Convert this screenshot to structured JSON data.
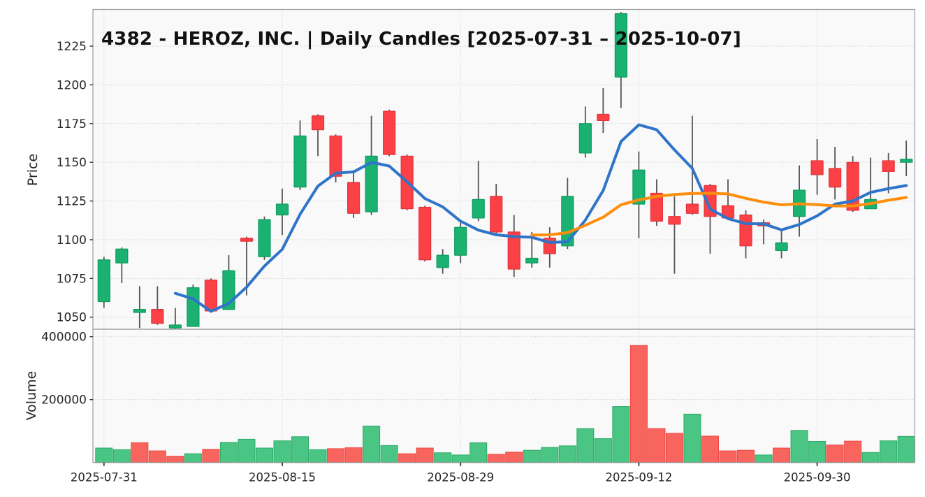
{
  "title": "4382 - HEROZ, INC. | Daily Candles [2025-07-31 – 2025-10-07]",
  "price_axis": {
    "label": "Price",
    "ticks": [
      1050,
      1075,
      1100,
      1125,
      1150,
      1175,
      1200,
      1225
    ]
  },
  "volume_axis": {
    "label": "Volume",
    "ticks": [
      200000,
      400000
    ]
  },
  "x_axis": {
    "tick_labels": [
      "2025-07-31",
      "2025-08-15",
      "2025-08-29",
      "2025-09-12",
      "2025-09-30"
    ],
    "tick_indices": [
      0,
      10,
      20,
      30,
      40
    ]
  },
  "colors": {
    "up": "#1bb271",
    "up_border": "#0f9a5e",
    "down": "#fb4146",
    "down_border": "#e2343c",
    "vol_up": "#4ac584",
    "vol_up_border": "#2aa968",
    "vol_down": "#f8655f",
    "vol_down_border": "#ef4440",
    "ma5": "#2e74c9",
    "ma25": "#fd8e0d",
    "wick": "#555555",
    "panel_bg": "#f9f9f9",
    "grid": "#cdcdcd",
    "spine": "#9a9a9a",
    "text": "#262626"
  },
  "chart_data": {
    "type": "candlestick",
    "title": "4382 - HEROZ, INC. | Daily Candles [2025-07-31 – 2025-10-07]",
    "ylabel": "Price",
    "ylabel2": "Volume",
    "price_ylim": [
      1042,
      1249
    ],
    "volume_ylim": [
      0,
      423700
    ],
    "grid": "dotted",
    "dates": [
      "2025-07-31",
      "2025-08-01",
      "2025-08-04",
      "2025-08-05",
      "2025-08-06",
      "2025-08-07",
      "2025-08-08",
      "2025-08-12",
      "2025-08-13",
      "2025-08-14",
      "2025-08-15",
      "2025-08-18",
      "2025-08-19",
      "2025-08-20",
      "2025-08-21",
      "2025-08-22",
      "2025-08-25",
      "2025-08-26",
      "2025-08-27",
      "2025-08-28",
      "2025-08-29",
      "2025-09-01",
      "2025-09-02",
      "2025-09-03",
      "2025-09-04",
      "2025-09-05",
      "2025-09-08",
      "2025-09-09",
      "2025-09-10",
      "2025-09-11",
      "2025-09-12",
      "2025-09-16",
      "2025-09-17",
      "2025-09-18",
      "2025-09-19",
      "2025-09-22",
      "2025-09-24",
      "2025-09-25",
      "2025-09-26",
      "2025-09-29",
      "2025-09-30",
      "2025-10-01",
      "2025-10-02",
      "2025-10-03",
      "2025-10-06",
      "2025-10-07"
    ],
    "open": [
      1060,
      1085,
      1053,
      1055,
      1043,
      1044,
      1074,
      1055,
      1101,
      1089,
      1116,
      1134,
      1180,
      1167,
      1137,
      1118,
      1183,
      1154,
      1121,
      1082,
      1090,
      1114,
      1128,
      1105,
      1085,
      1101,
      1096,
      1156,
      1181,
      1205,
      1123,
      1130,
      1115,
      1123,
      1135,
      1122,
      1116,
      1111,
      1093,
      1115,
      1151,
      1146,
      1150,
      1120,
      1151,
      1150
    ],
    "high": [
      1089,
      1095,
      1070,
      1070,
      1056,
      1071,
      1075,
      1090,
      1102,
      1115,
      1133,
      1177,
      1181,
      1168,
      1145,
      1180,
      1184,
      1155,
      1122,
      1094,
      1111,
      1151,
      1136,
      1116,
      1105,
      1108,
      1140,
      1186,
      1198,
      1247,
      1157,
      1139,
      1128,
      1180,
      1136,
      1139,
      1119,
      1113,
      1107,
      1148,
      1165,
      1160,
      1154,
      1153,
      1156,
      1164
    ],
    "low": [
      1056,
      1072,
      1043,
      1045,
      1042,
      1044,
      1053,
      1055,
      1064,
      1087,
      1103,
      1132,
      1154,
      1137,
      1114,
      1116,
      1154,
      1119,
      1086,
      1078,
      1085,
      1112,
      1104,
      1076,
      1082,
      1082,
      1094,
      1153,
      1169,
      1185,
      1101,
      1109,
      1078,
      1116,
      1091,
      1113,
      1088,
      1097,
      1088,
      1102,
      1129,
      1126,
      1118,
      1120,
      1130,
      1141
    ],
    "close": [
      1087,
      1094,
      1055,
      1046,
      1045,
      1069,
      1054,
      1080,
      1099,
      1113,
      1123,
      1167,
      1171,
      1141,
      1117,
      1154,
      1155,
      1120,
      1087,
      1090,
      1108,
      1126,
      1105,
      1081,
      1088,
      1091,
      1128,
      1175,
      1177,
      1246,
      1145,
      1112,
      1110,
      1117,
      1115,
      1114,
      1096,
      1109,
      1098,
      1132,
      1142,
      1134,
      1119,
      1126,
      1144,
      1152
    ],
    "volume": [
      46000,
      41000,
      63000,
      37000,
      20000,
      28000,
      42000,
      64000,
      74000,
      46000,
      69000,
      82000,
      41000,
      44000,
      47000,
      116000,
      54000,
      28000,
      46000,
      31000,
      24000,
      63000,
      26000,
      33000,
      39000,
      48000,
      53000,
      108000,
      76000,
      178000,
      372000,
      108000,
      93000,
      154000,
      84000,
      37000,
      39000,
      24000,
      46000,
      102000,
      67000,
      56000,
      68000,
      32000,
      69000,
      83000
    ],
    "volume_color_rule": "close-vs-previous-close",
    "overlays": [
      {
        "name": "MA5",
        "window": 5,
        "color_key": "ma5",
        "width": 4
      },
      {
        "name": "MA25",
        "window": 25,
        "color_key": "ma25",
        "width": 4
      }
    ]
  }
}
